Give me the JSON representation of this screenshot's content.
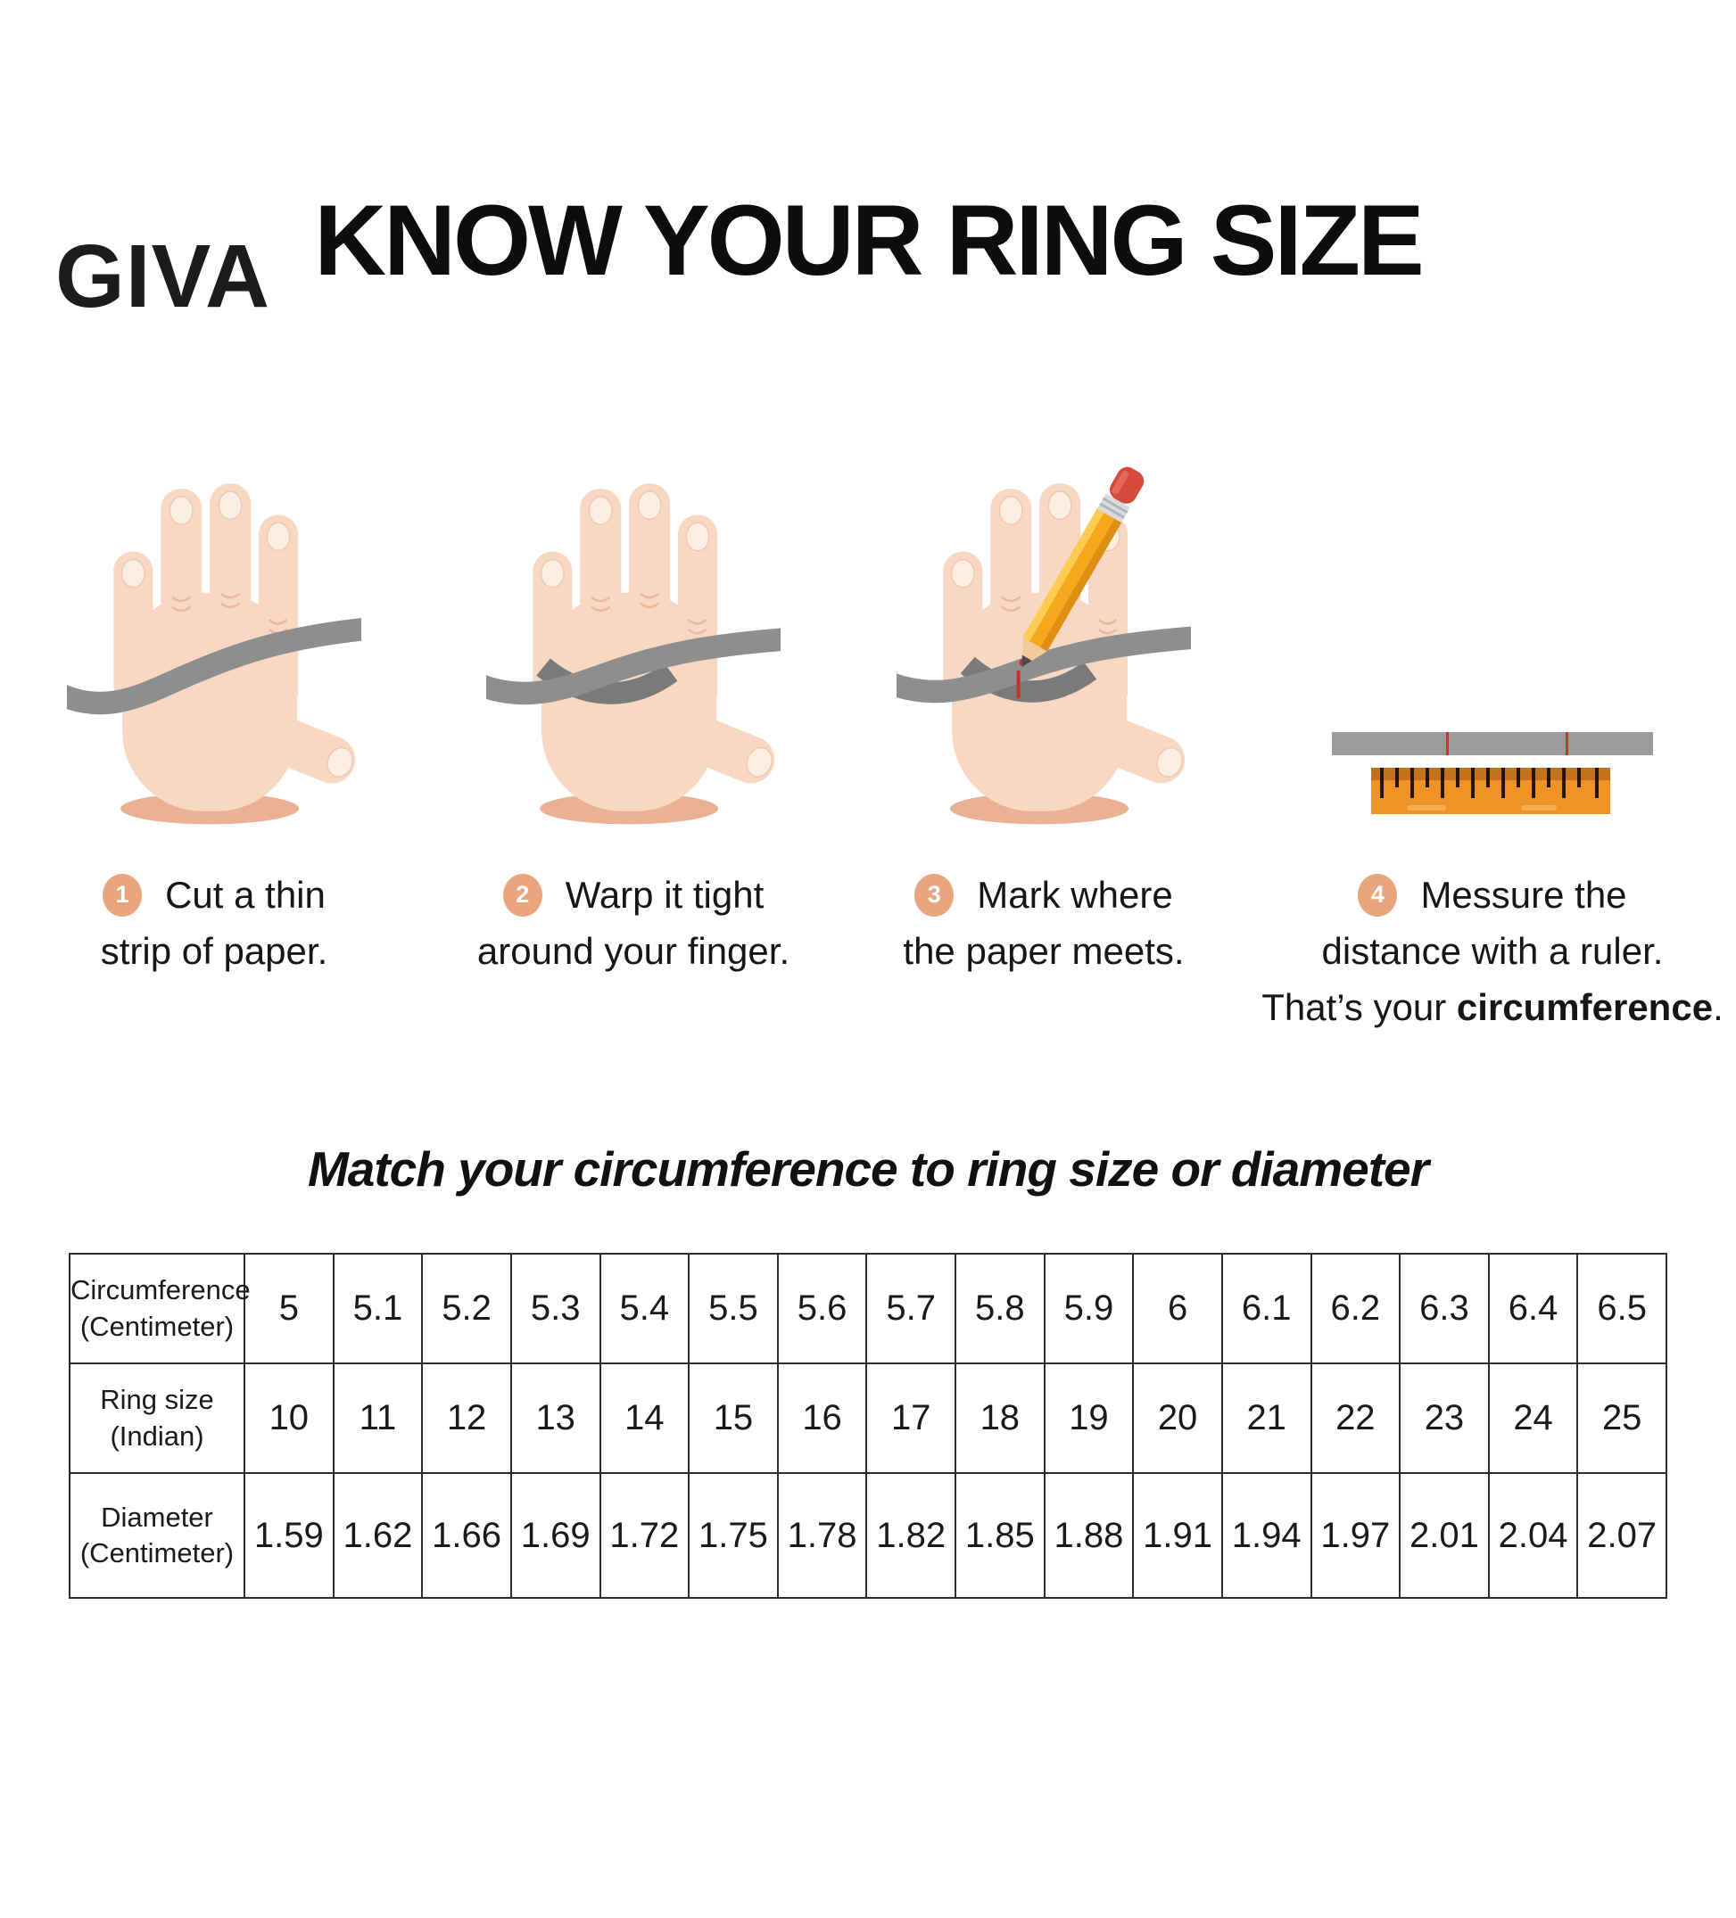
{
  "brand": {
    "logo_text": "GIVA"
  },
  "title": "KNOW YOUR RING SIZE",
  "steps": [
    {
      "number": "1",
      "lines": [
        "Cut a thin",
        "strip of paper."
      ]
    },
    {
      "number": "2",
      "lines": [
        "Warp it tight",
        "around your finger."
      ]
    },
    {
      "number": "3",
      "lines": [
        "Mark where",
        "the paper meets."
      ]
    },
    {
      "number": "4",
      "lines": [
        "Messure the",
        "distance with a ruler."
      ],
      "line3": {
        "plain": "That’s your ",
        "bold": "circumference",
        "end": "."
      }
    }
  ],
  "subtitle": "Match your circumference to ring size or diameter",
  "table": {
    "rows": [
      {
        "label_lines": [
          "Circumference",
          "(Centimeter)"
        ],
        "values": [
          "5",
          "5.1",
          "5.2",
          "5.3",
          "5.4",
          "5.5",
          "5.6",
          "5.7",
          "5.8",
          "5.9",
          "6",
          "6.1",
          "6.2",
          "6.3",
          "6.4",
          "6.5"
        ]
      },
      {
        "label_lines": [
          "Ring size",
          "(Indian)"
        ],
        "values": [
          "10",
          "11",
          "12",
          "13",
          "14",
          "15",
          "16",
          "17",
          "18",
          "19",
          "20",
          "21",
          "22",
          "23",
          "24",
          "25"
        ]
      },
      {
        "label_lines": [
          "Diameter",
          "(Centimeter)"
        ],
        "values": [
          "1.59",
          "1.62",
          "1.66",
          "1.69",
          "1.72",
          "1.75",
          "1.78",
          "1.82",
          "1.85",
          "1.88",
          "1.91",
          "1.94",
          "1.97",
          "2.01",
          "2.04",
          "2.07"
        ]
      }
    ]
  },
  "colors": {
    "accent_badge": "#E8A57E",
    "skin": "#F8D8C3",
    "paper_strip_gray": "#8E8E8E",
    "ruler_orange": "#EF9326",
    "mark_red": "#C23128",
    "pencil_yellow": "#F6A81C",
    "eraser_red": "#D64A3B"
  }
}
